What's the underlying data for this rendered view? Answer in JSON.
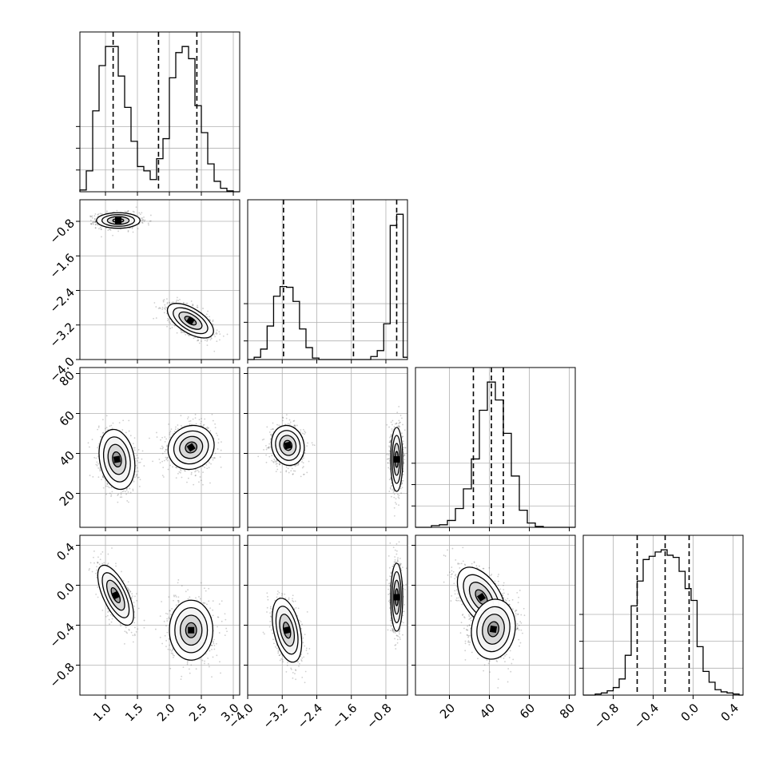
{
  "chart_data": {
    "type": "corner",
    "grid": true,
    "n_params": 4,
    "histogram_style": "step",
    "density_style": "scatter points, filled density with contour lines",
    "colors": {
      "line": "#000000",
      "grid": "#b0b0b0",
      "points": "#3c3c3c",
      "density": "#000000",
      "background": "#ffffff"
    },
    "params": [
      {
        "range": [
          0.6,
          3.1
        ],
        "ticks": [
          "1.0",
          "1.5",
          "2.0",
          "2.5",
          "3.0"
        ],
        "tick_values": [
          1.0,
          1.5,
          2.0,
          2.5,
          3.0
        ],
        "quantiles": [
          1.12,
          1.83,
          2.43
        ]
      },
      {
        "range": [
          -4.0,
          -0.3
        ],
        "ticks": [
          "−4.0",
          "−3.2",
          "−2.4",
          "−1.6",
          "−0.8"
        ],
        "tick_values": [
          -4.0,
          -3.2,
          -2.4,
          -1.6,
          -0.8
        ],
        "quantiles": [
          -3.17,
          -1.55,
          -0.55
        ]
      },
      {
        "range": [
          3,
          83
        ],
        "ticks": [
          "20",
          "40",
          "60",
          "80"
        ],
        "tick_values": [
          20,
          40,
          60,
          80
        ],
        "quantiles": [
          32,
          41,
          47
        ]
      },
      {
        "range": [
          -1.1,
          0.5
        ],
        "ticks": [
          "−0.8",
          "−0.4",
          "0.0",
          "0.4"
        ],
        "tick_values": [
          -0.8,
          -0.4,
          0.0,
          0.4
        ],
        "quantiles": [
          -0.56,
          -0.28,
          -0.04
        ]
      }
    ],
    "histograms": [
      {
        "param": 0,
        "bin_edges": [
          0.6,
          0.7,
          0.8,
          0.9,
          1.0,
          1.1,
          1.2,
          1.3,
          1.4,
          1.5,
          1.6,
          1.7,
          1.8,
          1.9,
          2.0,
          2.1,
          2.2,
          2.3,
          2.4,
          2.5,
          2.6,
          2.7,
          2.8,
          2.9,
          3.0,
          3.1
        ],
        "counts": [
          2,
          24,
          93,
          145,
          167,
          167,
          133,
          97,
          58,
          29,
          24,
          14,
          38,
          61,
          131,
          160,
          167,
          153,
          99,
          68,
          32,
          12,
          4,
          1,
          0
        ]
      },
      {
        "param": 1,
        "bin_edges": [
          -4.0,
          -3.85,
          -3.7,
          -3.55,
          -3.4,
          -3.25,
          -3.1,
          -2.95,
          -2.8,
          -2.65,
          -2.5,
          -2.35,
          -2.2,
          -2.05,
          -1.9,
          -1.75,
          -1.6,
          -1.45,
          -1.3,
          -1.15,
          -1.0,
          -0.85,
          -0.7,
          -0.55,
          -0.4,
          -0.3
        ],
        "counts": [
          0,
          3,
          14,
          45,
          85,
          98,
          97,
          78,
          41,
          16,
          2,
          0,
          0,
          0,
          0,
          0,
          0,
          0,
          0,
          4,
          12,
          48,
          180,
          195,
          3
        ]
      },
      {
        "param": 2,
        "bin_edges": [
          3,
          7,
          11,
          15,
          19,
          23,
          27,
          31,
          35,
          39,
          43,
          47,
          51,
          55,
          59,
          63,
          67,
          71,
          75,
          79,
          83
        ],
        "counts": [
          0,
          0,
          2,
          3,
          8,
          22,
          45,
          80,
          137,
          170,
          149,
          110,
          60,
          20,
          5,
          1,
          0,
          0,
          0,
          0
        ]
      },
      {
        "param": 3,
        "bin_edges": [
          -1.1,
          -1.04,
          -0.98,
          -0.92,
          -0.86,
          -0.8,
          -0.74,
          -0.68,
          -0.62,
          -0.56,
          -0.5,
          -0.44,
          -0.38,
          -0.32,
          -0.26,
          -0.2,
          -0.14,
          -0.08,
          -0.02,
          0.04,
          0.1,
          0.16,
          0.22,
          0.28,
          0.34,
          0.4,
          0.46,
          0.5
        ],
        "counts": [
          0,
          0,
          1,
          2,
          4,
          7,
          15,
          37,
          83,
          106,
          126,
          129,
          133,
          135,
          130,
          128,
          115,
          99,
          88,
          45,
          22,
          12,
          5,
          3,
          2,
          1,
          0
        ]
      }
    ],
    "pair_clusters": [
      {
        "row": 1,
        "col": 0,
        "clusters": [
          {
            "mean": [
              1.2,
              -0.78
            ],
            "std": [
              0.17,
              0.09
            ],
            "corr": 0.0,
            "weight": 0.5
          },
          {
            "mean": [
              2.33,
              -3.1
            ],
            "std": [
              0.18,
              0.2
            ],
            "corr": -0.6,
            "weight": 0.5
          }
        ]
      },
      {
        "row": 2,
        "col": 0,
        "clusters": [
          {
            "mean": [
              1.18,
              37
            ],
            "std": [
              0.14,
              7.5
            ],
            "corr": -0.2,
            "weight": 0.5
          },
          {
            "mean": [
              2.34,
              43
            ],
            "std": [
              0.18,
              5.5
            ],
            "corr": 0.1,
            "weight": 0.5
          }
        ]
      },
      {
        "row": 2,
        "col": 1,
        "clusters": [
          {
            "mean": [
              -3.07,
              44
            ],
            "std": [
              0.19,
              5.0
            ],
            "corr": -0.1,
            "weight": 0.5
          },
          {
            "mean": [
              -0.55,
              37
            ],
            "std": [
              0.07,
              8.0
            ],
            "corr": 0.0,
            "weight": 0.5
          }
        ]
      },
      {
        "row": 3,
        "col": 0,
        "clusters": [
          {
            "mean": [
              1.16,
              -0.1
            ],
            "std": [
              0.14,
              0.15
            ],
            "corr": -0.65,
            "weight": 0.5
          },
          {
            "mean": [
              2.34,
              -0.45
            ],
            "std": [
              0.17,
              0.15
            ],
            "corr": 0.0,
            "weight": 0.5
          }
        ]
      },
      {
        "row": 3,
        "col": 1,
        "clusters": [
          {
            "mean": [
              -3.09,
              -0.45
            ],
            "std": [
              0.17,
              0.16
            ],
            "corr": -0.4,
            "weight": 0.5
          },
          {
            "mean": [
              -0.55,
              -0.12
            ],
            "std": [
              0.07,
              0.17
            ],
            "corr": 0.0,
            "weight": 0.5
          }
        ]
      },
      {
        "row": 3,
        "col": 2,
        "clusters": [
          {
            "mean": [
              36,
              -0.12
            ],
            "std": [
              6.0,
              0.15
            ],
            "corr": -0.5,
            "weight": 0.5
          },
          {
            "mean": [
              42,
              -0.44
            ],
            "std": [
              5.5,
              0.15
            ],
            "corr": 0.1,
            "weight": 0.5
          }
        ]
      }
    ]
  }
}
